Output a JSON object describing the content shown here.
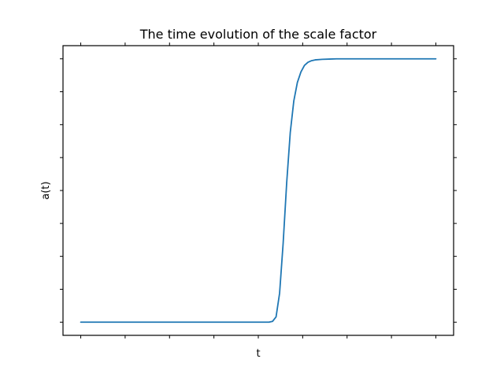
{
  "chart_data": {
    "type": "line",
    "title": "The time evolution of the scale factor",
    "xlabel": "t",
    "ylabel": "a(t)",
    "xlim": [
      -0.05,
      1.05
    ],
    "ylim": [
      -0.05,
      1.05
    ],
    "x_ticks": [
      0,
      0.125,
      0.25,
      0.375,
      0.5,
      0.625,
      0.75,
      0.875,
      1.0
    ],
    "y_ticks": [
      0,
      0.125,
      0.25,
      0.375,
      0.5,
      0.625,
      0.75,
      0.875,
      1.0
    ],
    "tick_labels_visible": false,
    "grid": false,
    "legend": "none",
    "series": [
      {
        "color": "#1f77b4",
        "x": [
          0.0,
          0.05,
          0.1,
          0.15,
          0.2,
          0.25,
          0.3,
          0.35,
          0.4,
          0.45,
          0.5,
          0.51,
          0.52,
          0.53,
          0.54,
          0.55,
          0.56,
          0.57,
          0.58,
          0.59,
          0.6,
          0.61,
          0.62,
          0.63,
          0.64,
          0.65,
          0.66,
          0.68,
          0.7,
          0.72,
          0.75,
          0.8,
          0.85,
          0.9,
          0.95,
          1.0
        ],
        "y": [
          0.0,
          0.0,
          0.0,
          0.0,
          0.0,
          0.0,
          0.0,
          0.0,
          0.0,
          0.0,
          0.0,
          0.0,
          0.0,
          0.0,
          0.003,
          0.02,
          0.11,
          0.3,
          0.53,
          0.72,
          0.84,
          0.91,
          0.95,
          0.975,
          0.987,
          0.993,
          0.996,
          0.998,
          0.999,
          1.0,
          1.0,
          1.0,
          1.0,
          1.0,
          1.0,
          1.0
        ]
      }
    ]
  }
}
